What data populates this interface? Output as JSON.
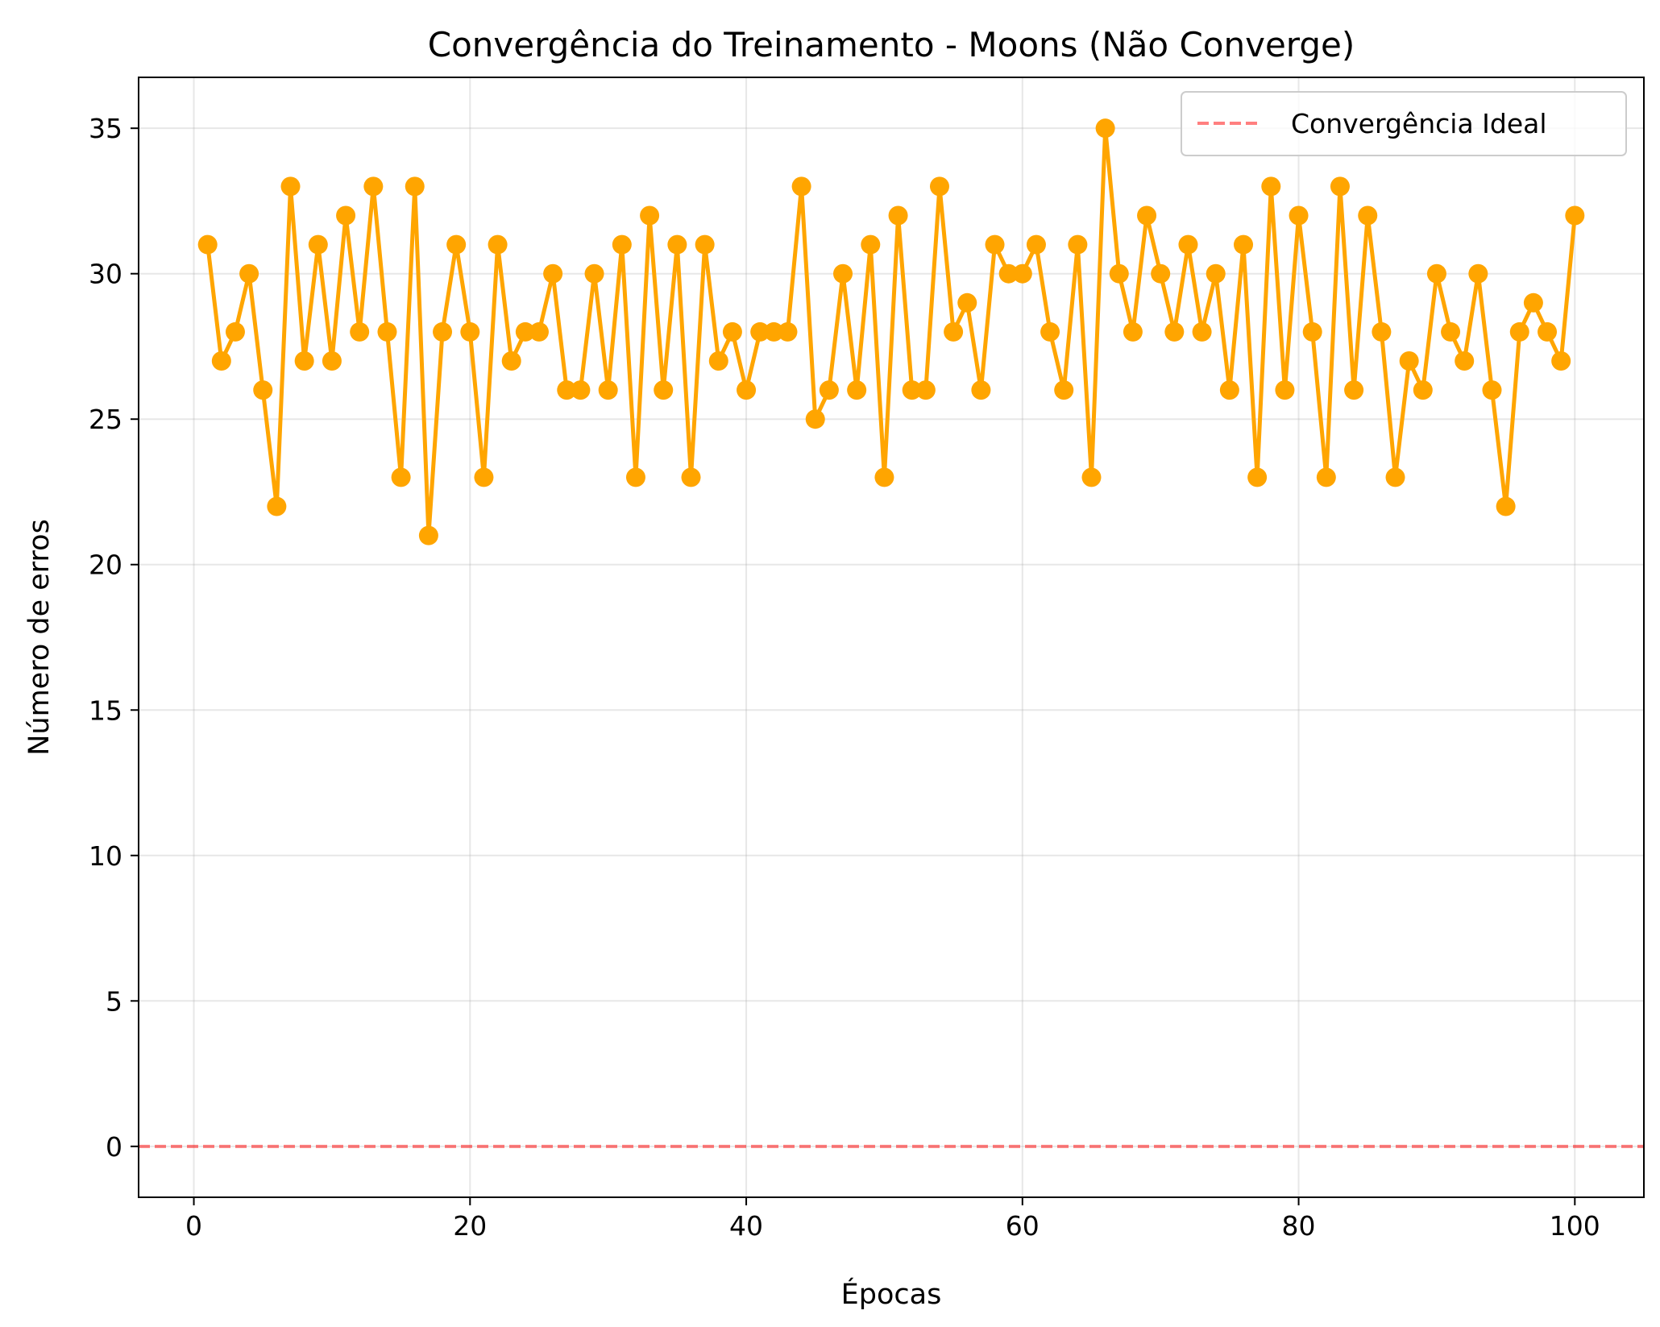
{
  "chart_data": {
    "type": "line",
    "title": "Convergência do Treinamento - Moons (Não Converge)",
    "xlabel": "Épocas",
    "ylabel": "Número de erros",
    "xlim": [
      -4,
      105
    ],
    "ylim": [
      -1.75,
      36.75
    ],
    "xticks": [
      0,
      20,
      40,
      60,
      80,
      100
    ],
    "yticks": [
      0,
      5,
      10,
      15,
      20,
      25,
      30,
      35
    ],
    "grid": true,
    "legend_position": "top-right",
    "series": [
      {
        "color": "#FFA500",
        "marker": "circle",
        "x": [
          1,
          2,
          3,
          4,
          5,
          6,
          7,
          8,
          9,
          10,
          11,
          12,
          13,
          14,
          15,
          16,
          17,
          18,
          19,
          20,
          21,
          22,
          23,
          24,
          25,
          26,
          27,
          28,
          29,
          30,
          31,
          32,
          33,
          34,
          35,
          36,
          37,
          38,
          39,
          40,
          41,
          42,
          43,
          44,
          45,
          46,
          47,
          48,
          49,
          50,
          51,
          52,
          53,
          54,
          55,
          56,
          57,
          58,
          59,
          60,
          61,
          62,
          63,
          64,
          65,
          66,
          67,
          68,
          69,
          70,
          71,
          72,
          73,
          74,
          75,
          76,
          77,
          78,
          79,
          80,
          81,
          82,
          83,
          84,
          85,
          86,
          87,
          88,
          89,
          90,
          91,
          92,
          93,
          94,
          95,
          96,
          97,
          98,
          99,
          100
        ],
        "values": [
          31,
          27,
          28,
          30,
          26,
          22,
          33,
          27,
          31,
          27,
          32,
          28,
          33,
          28,
          23,
          33,
          21,
          28,
          31,
          28,
          23,
          31,
          27,
          28,
          28,
          30,
          26,
          26,
          30,
          26,
          31,
          23,
          32,
          26,
          31,
          23,
          31,
          27,
          28,
          26,
          28,
          28,
          28,
          33,
          25,
          26,
          30,
          26,
          31,
          23,
          32,
          26,
          26,
          33,
          28,
          29,
          26,
          31,
          30,
          30,
          31,
          28,
          26,
          31,
          23,
          35,
          30,
          28,
          32,
          30,
          28,
          31,
          28,
          30,
          26,
          31,
          23,
          33,
          26,
          32,
          28,
          23,
          33,
          26,
          32,
          28,
          23,
          27,
          26,
          30,
          28,
          27,
          30,
          26,
          22,
          28,
          29,
          28,
          27,
          32
        ]
      }
    ],
    "reference_lines": [
      {
        "name": "Convergência Ideal",
        "y": 0,
        "color": "#FF0000",
        "alpha": 0.5,
        "style": "dashed"
      }
    ]
  }
}
